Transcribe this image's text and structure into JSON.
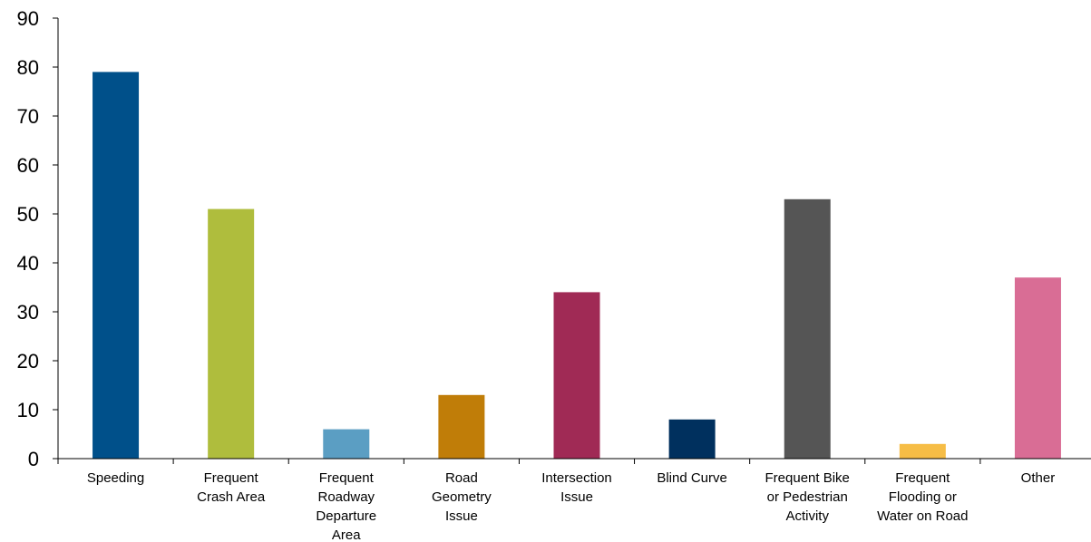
{
  "chart_data": {
    "type": "bar",
    "title": "",
    "xlabel": "",
    "ylabel": "",
    "ylim": [
      0,
      90
    ],
    "yticks": [
      0,
      10,
      20,
      30,
      40,
      50,
      60,
      70,
      80,
      90
    ],
    "grid": false,
    "legend": "none",
    "categories": [
      "Speeding",
      "Frequent Crash Area",
      "Frequent Roadway Departure Area",
      "Road Geometry Issue",
      "Intersection Issue",
      "Blind Curve",
      "Frequent Bike or Pedestrian Activity",
      "Frequent Flooding or Water on Road",
      "Other"
    ],
    "category_label_lines": [
      [
        "Speeding"
      ],
      [
        "Frequent",
        "Crash Area"
      ],
      [
        "Frequent",
        "Roadway",
        "Departure",
        "Area"
      ],
      [
        "Road",
        "Geometry",
        "Issue"
      ],
      [
        "Intersection",
        "Issue"
      ],
      [
        "Blind Curve"
      ],
      [
        "Frequent Bike",
        "or Pedestrian",
        "Activity"
      ],
      [
        "Frequent",
        "Flooding or",
        "Water on Road"
      ],
      [
        "Other"
      ]
    ],
    "values": [
      79,
      51,
      6,
      13,
      34,
      8,
      53,
      3,
      37
    ],
    "colors": [
      "#00508a",
      "#afbd3d",
      "#5b9ec3",
      "#c07d08",
      "#a02a55",
      "#00305e",
      "#555555",
      "#f6bd46",
      "#d96d95"
    ]
  }
}
